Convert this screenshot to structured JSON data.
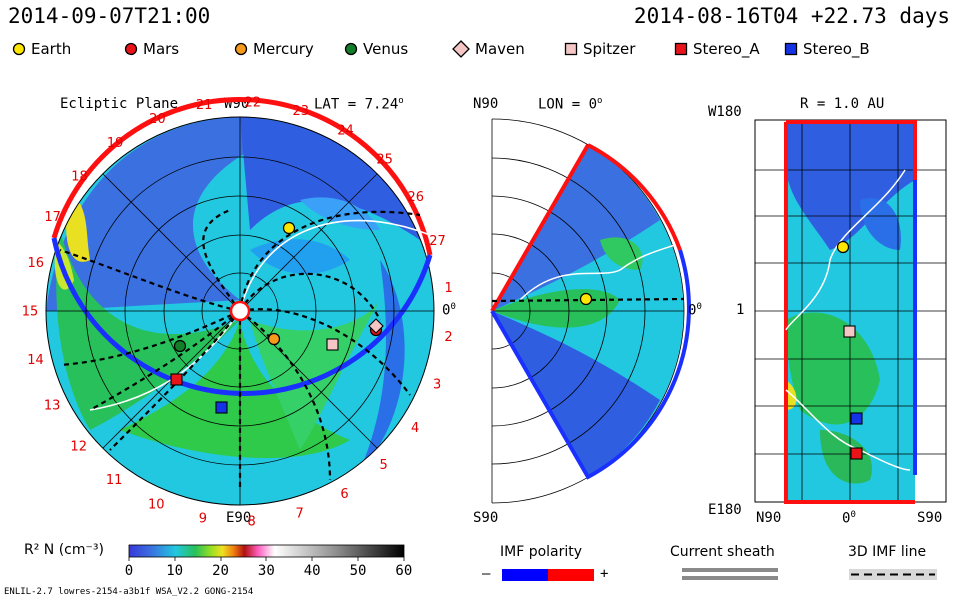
{
  "header": {
    "left_time": "2014-09-07T21:00",
    "right_time": "2014-08-16T04 +22.73 days"
  },
  "legend": [
    {
      "label": "Earth",
      "shape": "circle",
      "color": "#ffe600"
    },
    {
      "label": "Mars",
      "shape": "circle",
      "color": "#e8141a"
    },
    {
      "label": "Mercury",
      "shape": "circle",
      "color": "#f59a1a"
    },
    {
      "label": "Venus",
      "shape": "circle",
      "color": "#137d2a"
    },
    {
      "label": "Maven",
      "shape": "diamond",
      "color": "#f5c6c6"
    },
    {
      "label": "Spitzer",
      "shape": "square",
      "color": "#f5c6c6"
    },
    {
      "label": "Stereo_A",
      "shape": "square",
      "color": "#e8141a"
    },
    {
      "label": "Stereo_B",
      "shape": "square",
      "color": "#1433e6"
    }
  ],
  "panels": {
    "ecliptic": {
      "title": "Ecliptic Plane",
      "top_label": "W90",
      "lat_label": "LAT = 7.24",
      "lat_sup": "o",
      "bottom_label": "E90",
      "zero_label": "0",
      "zero_sup": "0",
      "numbers": [
        "1",
        "2",
        "3",
        "4",
        "5",
        "6",
        "7",
        "8",
        "9",
        "10",
        "11",
        "12",
        "13",
        "14",
        "15",
        "16",
        "17",
        "18",
        "19",
        "20",
        "21",
        "22",
        "23",
        "24",
        "25",
        "26",
        "27"
      ]
    },
    "meridional": {
      "top_left": "N90",
      "lon_label": "LON = 0",
      "lon_sup": "o",
      "bottom_left": "S90",
      "zero_label": "0",
      "zero_sup": "0"
    },
    "radial": {
      "r_label": "R = 1.0 AU",
      "top_left": "W180",
      "mid_left": "1",
      "bottom_left": "E180",
      "bottom_n": "N90",
      "bottom_zero": "0",
      "bottom_zero_sup": "0",
      "bottom_s": "S90"
    }
  },
  "colorbar": {
    "label": "R² N (cm⁻³)",
    "ticks": [
      "0",
      "10",
      "20",
      "30",
      "40",
      "50",
      "60"
    ]
  },
  "imf": {
    "title": "IMF polarity",
    "minus": "–",
    "plus": "+",
    "neg_color": "#0000ff",
    "pos_color": "#ff0000"
  },
  "sheath": {
    "title": "Current sheath"
  },
  "imf3d": {
    "title": "3D IMF line"
  },
  "footer": {
    "text": "ENLIL-2.7 lowres-2154-a3b1f WSA_V2.2 GONG-2154"
  }
}
